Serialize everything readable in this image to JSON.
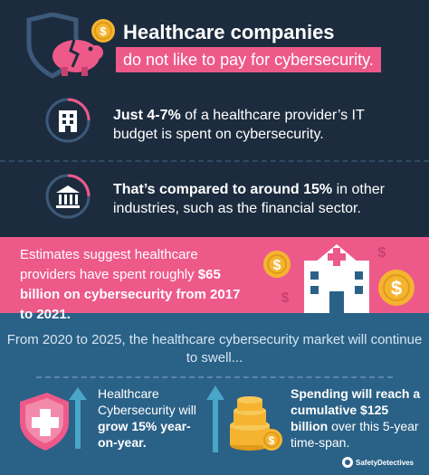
{
  "header": {
    "title": "Healthcare companies",
    "subtitle": "do not like to pay for cybersecurity."
  },
  "stats": [
    {
      "icon": "hospital-building-icon",
      "bold": "Just 4-7%",
      "rest": " of a healthcare provider’s IT budget is spent on cybersecurity."
    },
    {
      "icon": "bank-icon",
      "bold": "That’s compared to around 15%",
      "rest": " in other industries, such as the financial sector."
    }
  ],
  "estimate": {
    "lead": "Estimates suggest healthcare providers have spent roughly ",
    "bold": "$65 billion on cybersecurity from 2017 to 2021."
  },
  "market": {
    "intro": "From 2020 to 2025, the healthcare cybersecurity market will continue to swell...",
    "growth_lead": "Healthcare Cybersecurity will ",
    "growth_bold": "grow 15% year-on-year.",
    "spend_bold": "Spending will reach a cumulative $125 billion",
    "spend_rest": " over this 5-year time-span."
  },
  "brand": {
    "name": "SafetyDetectives"
  },
  "colors": {
    "navy": "#1c2c3e",
    "pink": "#ed5a8a",
    "blue": "#2a6187",
    "gold": "#f5b430"
  }
}
